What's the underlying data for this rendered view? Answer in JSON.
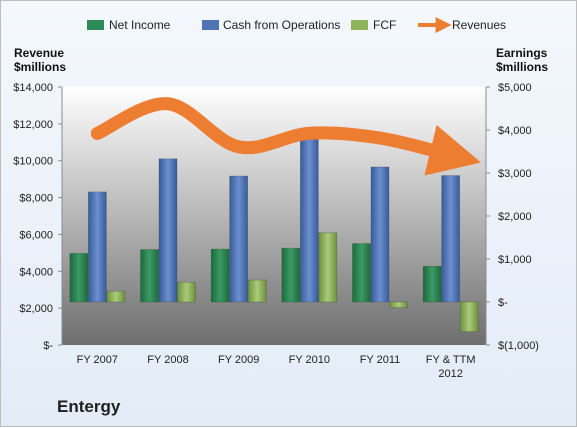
{
  "company": "Entergy",
  "chart_data": {
    "type": "bar",
    "categories": [
      "FY 2007",
      "FY 2008",
      "FY 2009",
      "FY 2010",
      "FY 2011",
      "FY & TTM 2012"
    ],
    "left_axis": {
      "label_line1": "Revenue",
      "label_line2": "$millions",
      "ticks": [
        "$-",
        "$2,000",
        "$4,000",
        "$6,000",
        "$8,000",
        "$10,000",
        "$12,000",
        "$14,000"
      ],
      "ylim": [
        0,
        14000
      ]
    },
    "right_axis": {
      "label_line1": "Earnings",
      "label_line2": "$millions",
      "ticks": [
        "$(1,000)",
        "$-",
        "$1,000",
        "$2,000",
        "$3,000",
        "$4,000",
        "$5,000"
      ],
      "ylim": [
        -1000,
        5000
      ]
    },
    "series": [
      {
        "name": "Net Income",
        "axis": "right",
        "color": "#2e8b57",
        "values": [
          1130,
          1220,
          1230,
          1250,
          1360,
          830
        ]
      },
      {
        "name": "Cash from Operations",
        "axis": "right",
        "color": "#4f74b5",
        "values": [
          2560,
          3330,
          2930,
          3920,
          3140,
          2940
        ]
      },
      {
        "name": "FCF",
        "axis": "right",
        "color": "#8fb35a",
        "values": [
          250,
          460,
          510,
          1610,
          -130,
          -690
        ]
      },
      {
        "name": "Revenues",
        "axis": "left",
        "type": "line",
        "color": "#ed7d31",
        "values": [
          11480,
          13090,
          10750,
          11490,
          11230,
          10300
        ]
      }
    ],
    "legend_position": "top",
    "grid": false
  }
}
